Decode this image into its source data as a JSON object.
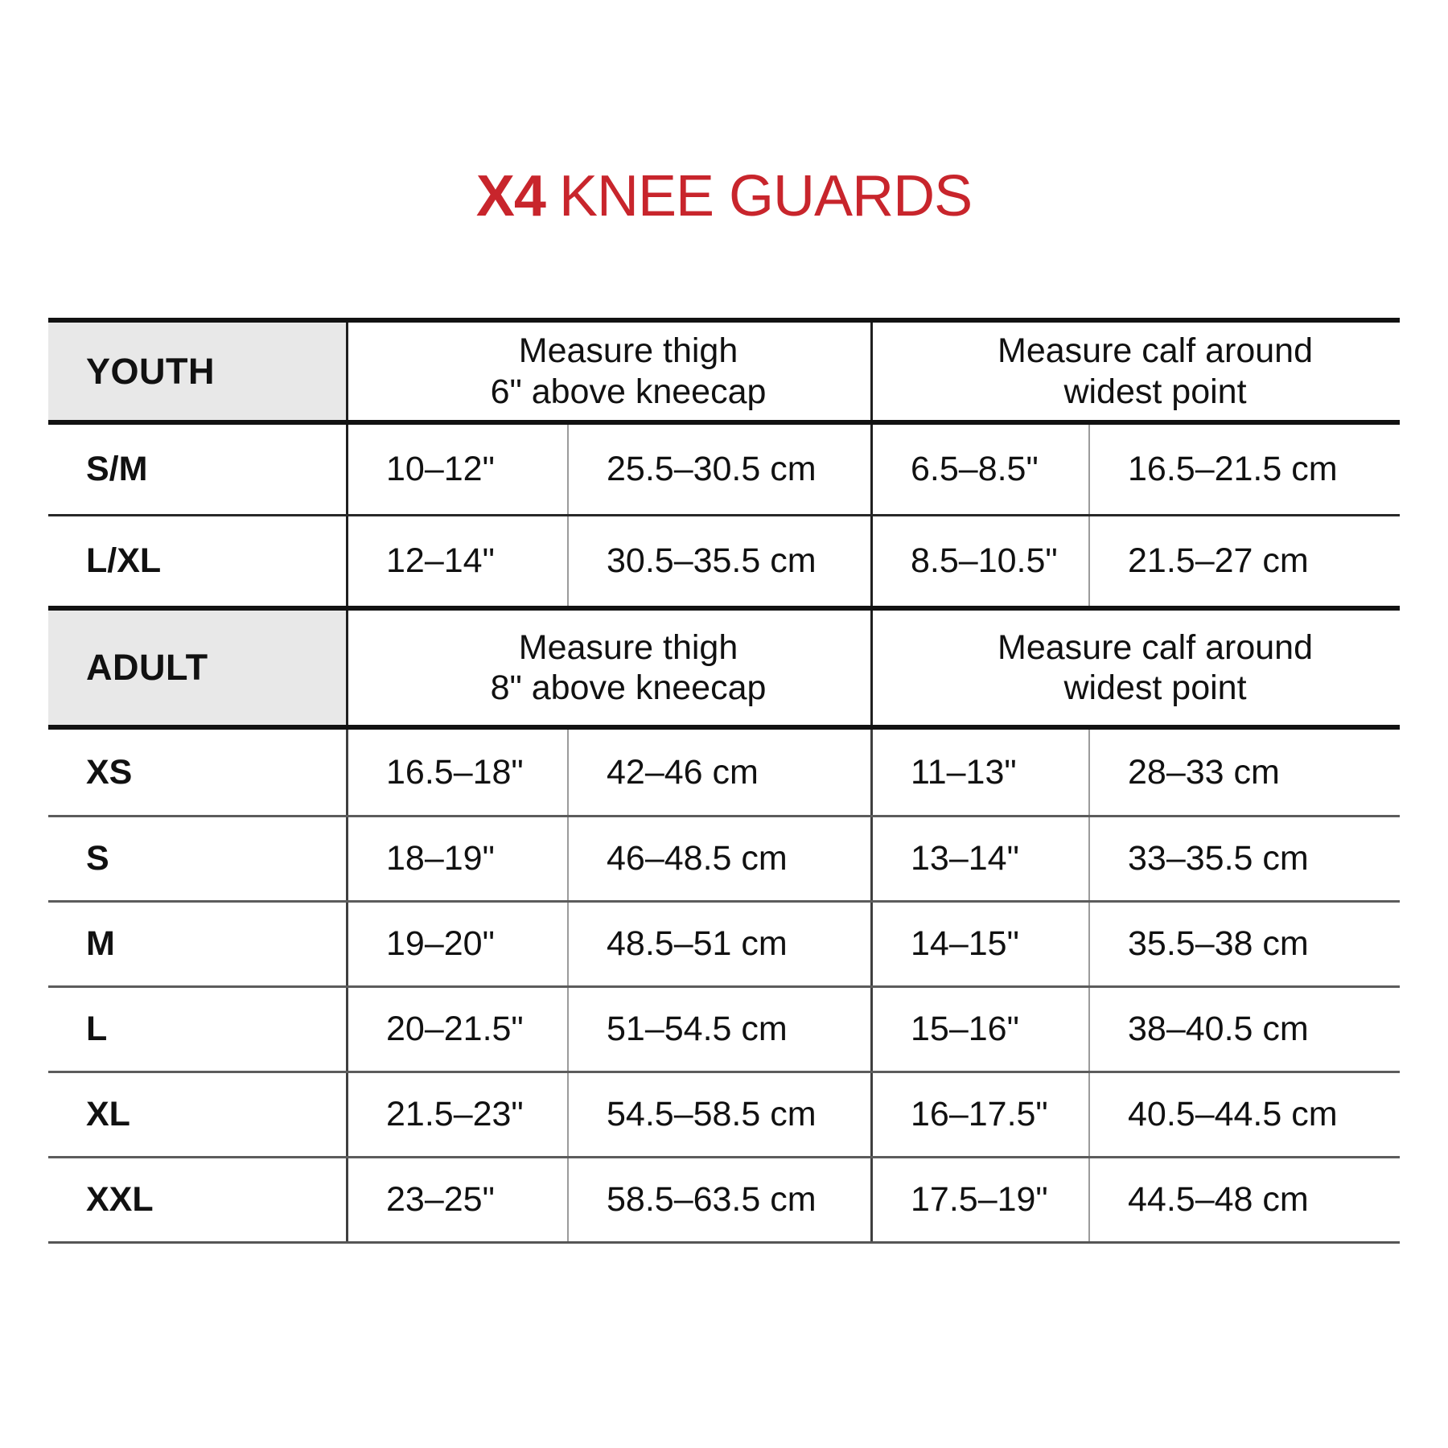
{
  "title": {
    "brand": "X4",
    "product": "KNEE GUARDS"
  },
  "colors": {
    "accent": "#C8252C",
    "header_bg": "#E8E8E8"
  },
  "table": {
    "sections": [
      {
        "label": "YOUTH",
        "thigh_header_line1": "Measure thigh",
        "thigh_header_line2": "6\" above kneecap",
        "calf_header_line1": "Measure calf around",
        "calf_header_line2": "widest point",
        "rows": [
          {
            "size": "S/M",
            "thigh_in": "10–12\"",
            "thigh_cm": "25.5–30.5 cm",
            "calf_in": "6.5–8.5\"",
            "calf_cm": "16.5–21.5 cm"
          },
          {
            "size": "L/XL",
            "thigh_in": "12–14\"",
            "thigh_cm": "30.5–35.5 cm",
            "calf_in": "8.5–10.5\"",
            "calf_cm": "21.5–27 cm"
          }
        ]
      },
      {
        "label": "ADULT",
        "thigh_header_line1": "Measure thigh",
        "thigh_header_line2": "8\" above kneecap",
        "calf_header_line1": "Measure calf around",
        "calf_header_line2": "widest point",
        "rows": [
          {
            "size": "XS",
            "thigh_in": "16.5–18\"",
            "thigh_cm": "42–46 cm",
            "calf_in": "11–13\"",
            "calf_cm": "28–33 cm"
          },
          {
            "size": "S",
            "thigh_in": "18–19\"",
            "thigh_cm": "46–48.5 cm",
            "calf_in": "13–14\"",
            "calf_cm": "33–35.5 cm"
          },
          {
            "size": "M",
            "thigh_in": "19–20\"",
            "thigh_cm": "48.5–51 cm",
            "calf_in": "14–15\"",
            "calf_cm": "35.5–38 cm"
          },
          {
            "size": "L",
            "thigh_in": "20–21.5\"",
            "thigh_cm": "51–54.5 cm",
            "calf_in": "15–16\"",
            "calf_cm": "38–40.5 cm"
          },
          {
            "size": "XL",
            "thigh_in": "21.5–23\"",
            "thigh_cm": "54.5–58.5 cm",
            "calf_in": "16–17.5\"",
            "calf_cm": "40.5–44.5 cm"
          },
          {
            "size": "XXL",
            "thigh_in": "23–25\"",
            "thigh_cm": "58.5–63.5 cm",
            "calf_in": "17.5–19\"",
            "calf_cm": "44.5–48 cm"
          }
        ]
      }
    ]
  }
}
